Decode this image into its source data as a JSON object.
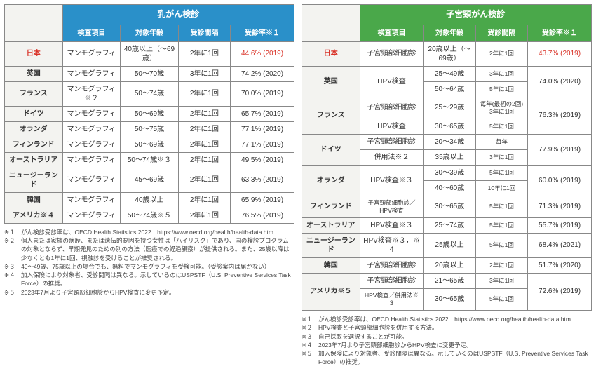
{
  "left": {
    "title": "乳がん検診",
    "title_color": "#2a90c9",
    "sub_header_color": "#2a90c9",
    "headers": [
      "検査項目",
      "対象年齢",
      "受診間隔",
      "受診率※１"
    ],
    "colWidths": [
      "20%",
      "20%",
      "20%",
      "18%",
      "22%"
    ],
    "rows": [
      {
        "country": "日本",
        "japan": true,
        "cells": [
          "マンモグラフィ",
          "40歳以上（～69歳）",
          "2年に1回",
          "44.6% (2019)"
        ]
      },
      {
        "country": "英国",
        "cells": [
          "マンモグラフィ",
          "50～70歳",
          "3年に1回",
          "74.2% (2020)"
        ]
      },
      {
        "country": "フランス",
        "cells": [
          "マンモグラフィ※２",
          "50～74歳",
          "2年に1回",
          "70.0% (2019)"
        ]
      },
      {
        "country": "ドイツ",
        "cells": [
          "マンモグラフィ",
          "50～69歳",
          "2年に1回",
          "65.7% (2019)"
        ]
      },
      {
        "country": "オランダ",
        "cells": [
          "マンモグラフィ",
          "50～75歳",
          "2年に1回",
          "77.1% (2019)"
        ]
      },
      {
        "country": "フィンランド",
        "cells": [
          "マンモグラフィ",
          "50～69歳",
          "2年に1回",
          "77.1% (2019)"
        ]
      },
      {
        "country": "オーストラリア",
        "cells": [
          "マンモグラフィ",
          "50～74歳※３",
          "2年に1回",
          "49.5% (2019)"
        ]
      },
      {
        "country": "ニュージーランド",
        "cells": [
          "マンモグラフィ",
          "45～69歳",
          "2年に1回",
          "63.3% (2019)"
        ]
      },
      {
        "country": "韓国",
        "cells": [
          "マンモグラフィ",
          "40歳以上",
          "2年に1回",
          "65.9% (2019)"
        ]
      },
      {
        "country": "アメリカ※４",
        "cells": [
          "マンモグラフィ",
          "50～74歳※５",
          "2年に1回",
          "76.5% (2019)"
        ]
      }
    ],
    "notes": [
      {
        "num": "※１",
        "text": "がん検診受診率は、OECD Health Statistics 2022　https://www.oecd.org/health/health-data.htm"
      },
      {
        "num": "※２",
        "text": "個人または家族の病歴、または遺伝的要因を持つ女性は「ハイリスク」であり、国の検診プログラムの対象とならず、早期発見のための別の方法（医療での経過観察）が提供される。また、25歳以降は少なくとも1年に1回、視触診を受けることが推奨される。"
      },
      {
        "num": "※３",
        "text": "40～49歳、75歳以上の場合でも、無料でマンモグラフィを受検可能。（受診案内は届かない）"
      },
      {
        "num": "※４",
        "text": "加入保険により対象者、受診間隔は異なる。示しているのはUSPSTF（U.S. Preventive Services Task Force）の推奨。"
      },
      {
        "num": "※５",
        "text": "2023年7月より子宮頸部細胞診からHPV検査に変更予定。"
      }
    ]
  },
  "right": {
    "title": "子宮頸がん検診",
    "title_color": "#4aa84a",
    "sub_header_color": "#4aa84a",
    "headers": [
      "検査項目",
      "対象年齢",
      "受診間隔",
      "受診率※１"
    ],
    "colWidths": [
      "20%",
      "22%",
      "18%",
      "18%",
      "22%"
    ],
    "rows": [
      {
        "country": "日本",
        "japan": true,
        "span": 1,
        "sub": [
          {
            "cells": [
              "子宮頸部細胞診",
              "20歳以上（～69歳）",
              "2年に1回"
            ],
            "rate": "43.7% (2019)"
          }
        ]
      },
      {
        "country": "英国",
        "span": 2,
        "rate": "74.0% (2020)",
        "sub": [
          {
            "cells": [
              "HPV検査",
              "25～49歳",
              "3年に1回"
            ],
            "test_rowspan": 2
          },
          {
            "cells": [
              "50～64歳",
              "5年に1回"
            ]
          }
        ]
      },
      {
        "country": "フランス",
        "span": 2,
        "rate": "76.3% (2019)",
        "sub": [
          {
            "cells": [
              "子宮頸部細胞診",
              "25～29歳",
              "毎年(最初の2回)\n3年に1回"
            ]
          },
          {
            "cells": [
              "HPV検査",
              "30～65歳",
              "5年に1回"
            ]
          }
        ]
      },
      {
        "country": "ドイツ",
        "span": 2,
        "rate": "77.9% (2019)",
        "sub": [
          {
            "cells": [
              "子宮頸部細胞診",
              "20～34歳",
              "毎年"
            ]
          },
          {
            "cells": [
              "併用法※２",
              "35歳以上",
              "3年に1回"
            ]
          }
        ]
      },
      {
        "country": "オランダ",
        "span": 2,
        "rate": "60.0% (2019)",
        "sub": [
          {
            "cells": [
              "HPV検査※３",
              "30～39歳",
              "5年に1回"
            ],
            "test_rowspan": 2
          },
          {
            "cells": [
              "40～60歳",
              "10年に1回"
            ]
          }
        ]
      },
      {
        "country": "フィンランド",
        "span": 1,
        "sub": [
          {
            "cells": [
              "子宮頸部細胞診／HPV検査",
              "30～65歳",
              "5年に1回"
            ],
            "rate": "71.3% (2019)",
            "small_test": true
          }
        ]
      },
      {
        "country": "オーストラリア",
        "span": 1,
        "sub": [
          {
            "cells": [
              "HPV検査※３",
              "25～74歳",
              "5年に1回"
            ],
            "rate": "55.7% (2019)"
          }
        ]
      },
      {
        "country": "ニュージーランド",
        "span": 1,
        "sub": [
          {
            "cells": [
              "HPV検査※３，※４",
              "25歳以上",
              "5年に1回"
            ],
            "rate": "68.4% (2021)"
          }
        ]
      },
      {
        "country": "韓国",
        "span": 1,
        "sub": [
          {
            "cells": [
              "子宮頸部細胞診",
              "20歳以上",
              "2年に1回"
            ],
            "rate": "51.7% (2020)"
          }
        ]
      },
      {
        "country": "アメリカ※５",
        "span": 2,
        "rate": "72.6% (2019)",
        "sub": [
          {
            "cells": [
              "子宮頸部細胞診",
              "21～65歳",
              "3年に1回"
            ]
          },
          {
            "cells": [
              "HPV検査／併用法※３",
              "30～65歳",
              "5年に1回"
            ],
            "small_test": true
          }
        ]
      }
    ],
    "notes": [
      {
        "num": "※１",
        "text": "がん検診受診率は、OECD Health Statistics 2022　https://www.oecd.org/health/health-data.htm"
      },
      {
        "num": "※２",
        "text": "HPV検査と子宮頸部細胞診を併用する方法。"
      },
      {
        "num": "※３",
        "text": "自己採取を選択することが可能。"
      },
      {
        "num": "※４",
        "text": "2023年7月より子宮頸部細胞診からHPV検査に変更予定。"
      },
      {
        "num": "※５",
        "text": "加入保険により対象者、受診間隔は異なる。示しているのはUSPSTF（U.S. Preventive Services Task Force）の推奨。"
      }
    ]
  }
}
